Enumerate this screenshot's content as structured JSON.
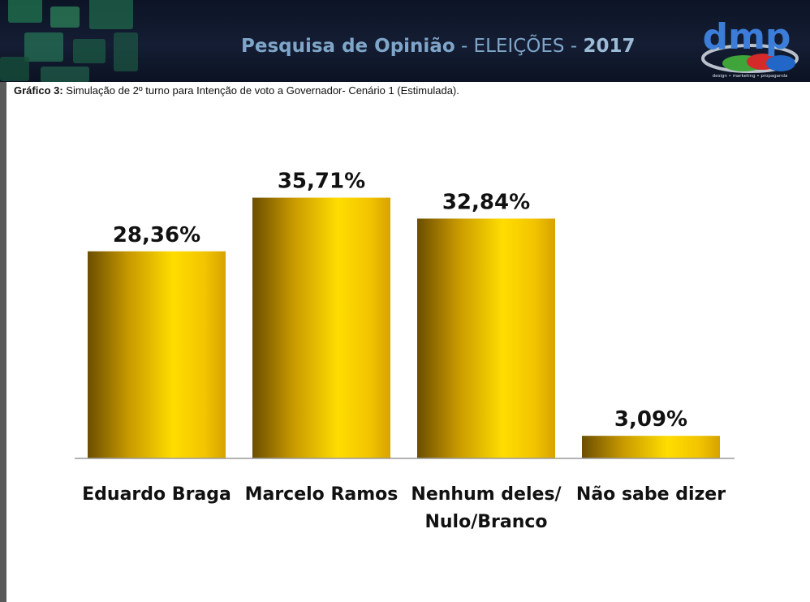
{
  "banner": {
    "title_bold": "Pesquisa de Opinião",
    "title_rest": " - ELEIÇÕES - ",
    "year": "2017",
    "logo_text": "dmp",
    "logo_tagline": "design • marketing • propaganda"
  },
  "subtitle": {
    "label": "Gráfico 3:",
    "text": " Simulação de 2º turno para Intenção de voto a Governador- Cenário 1 (Estimulada)."
  },
  "colors": {
    "bar_dark": "#6b4e00",
    "bar_light": "#ffdd00",
    "banner_bg": "#101a2e",
    "banner_text": "#7fa6c9"
  },
  "chart_data": {
    "type": "bar",
    "categories": [
      "Eduardo Braga",
      "Marcelo Ramos",
      "Nenhum deles/ Nulo/Branco",
      "Não sabe dizer"
    ],
    "category_lines": [
      [
        "Eduardo Braga"
      ],
      [
        "Marcelo Ramos"
      ],
      [
        "Nenhum deles/",
        "Nulo/Branco"
      ],
      [
        "Não sabe dizer"
      ]
    ],
    "values": [
      28.36,
      35.71,
      32.84,
      3.09
    ],
    "data_labels": [
      "28,36%",
      "35,71%",
      "32,84%",
      "3,09%"
    ],
    "title": "",
    "xlabel": "",
    "ylabel": "",
    "ylim": [
      0,
      40
    ],
    "grid": false
  }
}
